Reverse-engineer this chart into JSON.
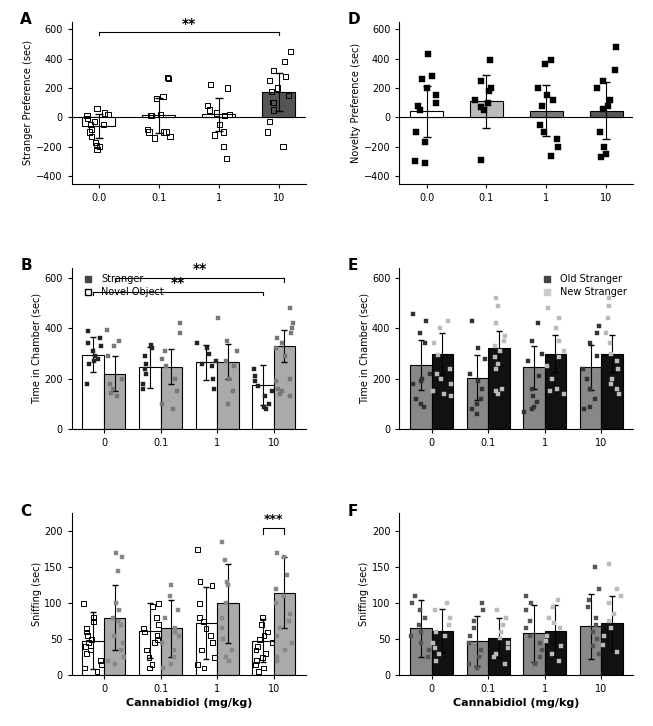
{
  "doses_ABC": [
    "0.0",
    "0.1",
    "1",
    "10"
  ],
  "doses_BC_x": [
    "0",
    "0.1",
    "1",
    "10"
  ],
  "A_means": [
    -60,
    15,
    20,
    175
  ],
  "A_errors": [
    80,
    120,
    115,
    130
  ],
  "A_colors": [
    "white",
    "white",
    "white",
    "#555555"
  ],
  "A_scatter": [
    [
      60,
      30,
      10,
      -30,
      -50,
      -100,
      -130,
      -170,
      -190,
      -200,
      -220,
      -50,
      -80,
      20,
      -10
    ],
    [
      140,
      130,
      20,
      15,
      10,
      -100,
      -130,
      -140,
      -100,
      270,
      265,
      -100,
      -80
    ],
    [
      225,
      200,
      50,
      30,
      20,
      -50,
      -100,
      -120,
      -200,
      -280,
      80,
      10
    ],
    [
      450,
      380,
      320,
      280,
      250,
      200,
      150,
      100,
      50,
      -30,
      -100,
      -200,
      175,
      100
    ]
  ],
  "D_means": [
    40,
    110,
    45,
    45
  ],
  "D_errors": [
    175,
    180,
    175,
    195
  ],
  "D_colors": [
    "white",
    "#bbbbbb",
    "#777777",
    "#555555"
  ],
  "D_scatter": [
    [
      430,
      280,
      260,
      200,
      150,
      100,
      80,
      50,
      -100,
      -170,
      -300,
      -310
    ],
    [
      390,
      250,
      200,
      180,
      120,
      100,
      70,
      50,
      -290
    ],
    [
      390,
      360,
      200,
      150,
      120,
      80,
      -50,
      -100,
      -150,
      -200,
      -260
    ],
    [
      480,
      320,
      250,
      200,
      120,
      80,
      60,
      -100,
      -200,
      -250,
      -270
    ]
  ],
  "B_stranger_means": [
    295,
    245,
    265,
    175
  ],
  "B_stranger_errors": [
    70,
    80,
    70,
    80
  ],
  "B_novel_means": [
    220,
    248,
    268,
    330
  ],
  "B_novel_errors": [
    70,
    70,
    70,
    65
  ],
  "B_stranger_scatter": [
    [
      390,
      360,
      340,
      330,
      310,
      290,
      280,
      270,
      260,
      180
    ],
    [
      335,
      320,
      290,
      260,
      240,
      220,
      180,
      160
    ],
    [
      340,
      320,
      300,
      270,
      260,
      250,
      200,
      160
    ],
    [
      240,
      210,
      190,
      170,
      150,
      130,
      100,
      90,
      80
    ]
  ],
  "B_novel_scatter": [
    [
      395,
      350,
      330,
      290,
      200,
      180,
      160,
      145,
      130
    ],
    [
      420,
      380,
      310,
      280,
      250,
      200,
      150,
      100,
      80
    ],
    [
      440,
      350,
      310,
      270,
      250,
      200,
      150,
      100
    ],
    [
      480,
      420,
      400,
      380,
      360,
      340,
      320,
      290,
      200,
      190,
      160,
      150,
      140,
      130
    ]
  ],
  "E_oldstranger_means": [
    255,
    205,
    245,
    245
  ],
  "E_oldstranger_errors": [
    100,
    90,
    85,
    90
  ],
  "E_newstranger_means": [
    300,
    320,
    300,
    300
  ],
  "E_newstranger_errors": [
    80,
    70,
    75,
    75
  ],
  "E_oldstranger_scatter": [
    [
      455,
      430,
      380,
      340,
      220,
      200,
      190,
      180,
      120,
      100,
      90
    ],
    [
      430,
      320,
      280,
      220,
      190,
      160,
      120,
      100,
      80,
      60
    ],
    [
      420,
      350,
      300,
      270,
      210,
      160,
      130,
      110,
      90,
      80,
      70
    ],
    [
      410,
      380,
      340,
      290,
      240,
      200,
      160,
      120,
      90,
      80
    ]
  ],
  "E_newstranger_scatter": [
    [
      430,
      400,
      340,
      295,
      240,
      220,
      200,
      180,
      150,
      140,
      130
    ],
    [
      520,
      490,
      420,
      370,
      350,
      330,
      310,
      285,
      260,
      240,
      160,
      150,
      140
    ],
    [
      480,
      440,
      400,
      350,
      310,
      285,
      250,
      200,
      160,
      150,
      140
    ],
    [
      520,
      490,
      440,
      380,
      340,
      300,
      270,
      240,
      200,
      180,
      160,
      140
    ]
  ],
  "C_stranger_means": [
    48,
    62,
    72,
    48
  ],
  "C_stranger_errors": [
    40,
    38,
    50,
    30
  ],
  "C_novel_means": [
    80,
    65,
    100,
    115
  ],
  "C_novel_errors": [
    45,
    40,
    55,
    50
  ],
  "C_stranger_scatter": [
    [
      100,
      80,
      75,
      65,
      60,
      55,
      50,
      45,
      40,
      35,
      30,
      20,
      15,
      10,
      5
    ],
    [
      100,
      95,
      80,
      70,
      65,
      60,
      55,
      50,
      45,
      35,
      25,
      15,
      10
    ],
    [
      175,
      130,
      125,
      100,
      80,
      75,
      65,
      55,
      45,
      35,
      25,
      15,
      10
    ],
    [
      80,
      70,
      60,
      55,
      50,
      45,
      40,
      35,
      30,
      25,
      20,
      15,
      10,
      5
    ]
  ],
  "C_novel_scatter": [
    [
      170,
      165,
      145,
      100,
      90,
      80,
      75,
      70,
      55,
      45,
      35,
      25,
      20,
      15
    ],
    [
      125,
      110,
      90,
      80,
      65,
      60,
      55,
      45,
      35,
      25,
      15,
      10
    ],
    [
      185,
      160,
      130,
      125,
      100,
      80,
      65,
      50,
      35,
      25,
      20
    ],
    [
      170,
      165,
      140,
      120,
      110,
      100,
      85,
      75,
      65,
      55,
      45,
      35,
      25,
      20
    ]
  ],
  "F_oldstranger_means": [
    65,
    48,
    58,
    68
  ],
  "F_oldstranger_errors": [
    40,
    35,
    40,
    45
  ],
  "F_newstranger_means": [
    62,
    52,
    62,
    72
  ],
  "F_newstranger_errors": [
    30,
    28,
    35,
    38
  ],
  "F_oldstranger_scatter": [
    [
      110,
      100,
      90,
      80,
      70,
      60,
      55,
      45,
      35,
      25
    ],
    [
      100,
      90,
      75,
      65,
      55,
      45,
      35,
      25,
      15,
      10
    ],
    [
      110,
      100,
      90,
      75,
      65,
      55,
      45,
      35,
      25,
      15
    ],
    [
      150,
      120,
      105,
      95,
      80,
      70,
      60,
      50,
      40,
      30
    ]
  ],
  "F_newstranger_scatter": [
    [
      100,
      90,
      80,
      70,
      60,
      55,
      45,
      38,
      30,
      20
    ],
    [
      90,
      80,
      70,
      60,
      52,
      45,
      38,
      30,
      25,
      15
    ],
    [
      105,
      95,
      80,
      72,
      65,
      55,
      48,
      40,
      30,
      20
    ],
    [
      155,
      120,
      110,
      100,
      85,
      75,
      65,
      55,
      42,
      32
    ]
  ],
  "xlabel": "Cannabidiol (mg/kg)",
  "ylabel_A": "Stranger Preference (sec)",
  "ylabel_B": "Time in Chamber (sec)",
  "ylabel_C": "Sniffing (sec)",
  "ylabel_D": "Novelty Preference (sec)",
  "ylabel_E": "Time in Chamber (sec)",
  "ylabel_F": "Sniffing (sec)",
  "legend_B_1": "Stranger",
  "legend_B_2": "Novel Object",
  "legend_E_1": "Old Stranger",
  "legend_E_2": "New Stranger"
}
